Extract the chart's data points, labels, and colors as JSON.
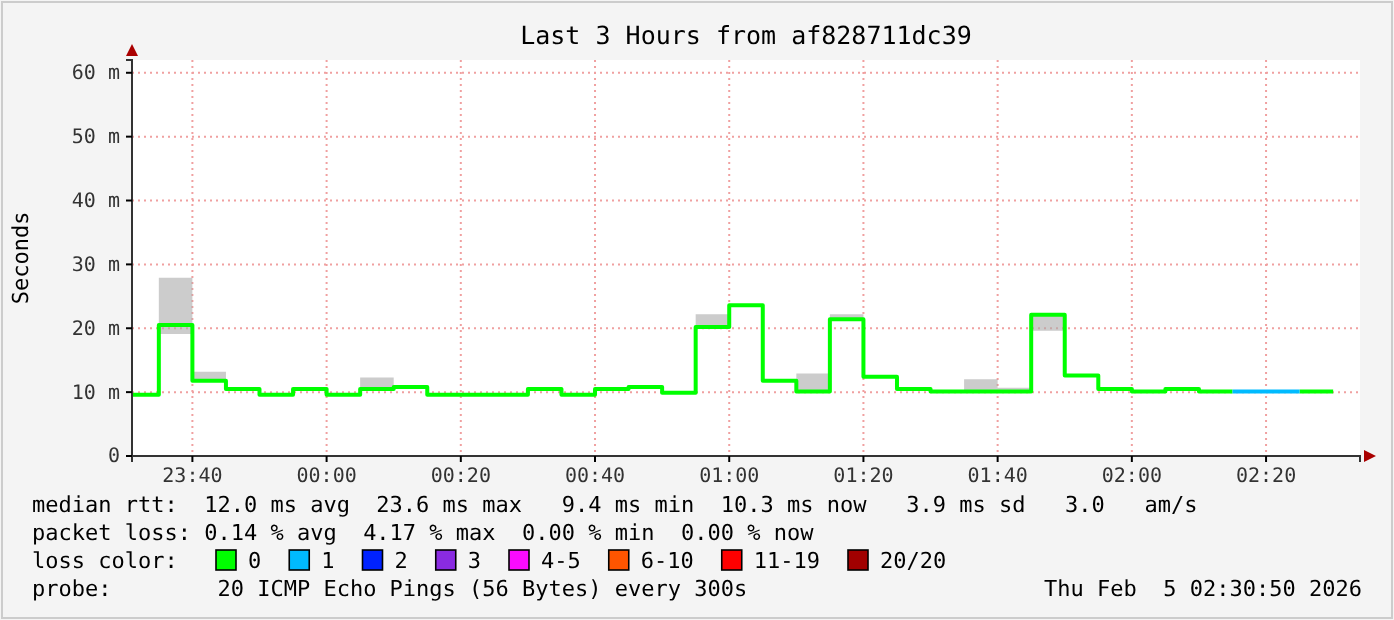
{
  "chart_data": {
    "type": "step",
    "title": "Last 3 Hours from af828711dc39",
    "ylabel": "Seconds",
    "x": [
      "2026-02-04T23:35",
      "2026-02-04T23:40",
      "2026-02-04T23:45",
      "2026-02-04T23:50",
      "2026-02-04T23:55",
      "2026-02-05T00:00",
      "2026-02-05T00:05",
      "2026-02-05T00:10",
      "2026-02-05T00:15",
      "2026-02-05T00:20",
      "2026-02-05T00:25",
      "2026-02-05T00:30",
      "2026-02-05T00:35",
      "2026-02-05T00:40",
      "2026-02-05T00:45",
      "2026-02-05T00:50",
      "2026-02-05T00:55",
      "2026-02-05T01:00",
      "2026-02-05T01:05",
      "2026-02-05T01:10",
      "2026-02-05T01:15",
      "2026-02-05T01:20",
      "2026-02-05T01:25",
      "2026-02-05T01:30",
      "2026-02-05T01:35",
      "2026-02-05T01:40",
      "2026-02-05T01:45",
      "2026-02-05T01:50",
      "2026-02-05T01:55",
      "2026-02-05T02:00",
      "2026-02-05T02:05",
      "2026-02-05T02:10",
      "2026-02-05T02:15",
      "2026-02-05T02:20",
      "2026-02-05T02:25",
      "2026-02-05T02:30"
    ],
    "xlim": [
      "2026-02-04T23:31",
      "2026-02-05T02:34"
    ],
    "xticks": [
      {
        "value": "2026-02-04T23:40",
        "label": "23:40"
      },
      {
        "value": "2026-02-05T00:00",
        "label": "00:00"
      },
      {
        "value": "2026-02-05T00:20",
        "label": "00:20"
      },
      {
        "value": "2026-02-05T00:40",
        "label": "00:40"
      },
      {
        "value": "2026-02-05T01:00",
        "label": "01:00"
      },
      {
        "value": "2026-02-05T01:20",
        "label": "01:20"
      },
      {
        "value": "2026-02-05T01:40",
        "label": "01:40"
      },
      {
        "value": "2026-02-05T02:00",
        "label": "02:00"
      },
      {
        "value": "2026-02-05T02:20",
        "label": "02:20"
      }
    ],
    "ylim": [
      0,
      62
    ],
    "yticks": [
      0,
      {
        "value": 10,
        "label": "10 m"
      },
      {
        "value": 20,
        "label": "20 m"
      },
      {
        "value": 30,
        "label": "30 m"
      },
      {
        "value": 40,
        "label": "40 m"
      },
      {
        "value": 50,
        "label": "50 m"
      },
      {
        "value": 60,
        "label": "60 m"
      }
    ],
    "grid": true,
    "legend": "bottom",
    "legend_title": "loss color:",
    "series": [
      {
        "name": "0",
        "color": "#00ff00",
        "values": [
          9.6,
          20.5,
          11.8,
          10.5,
          9.6,
          10.5,
          9.6,
          10.5,
          10.8,
          9.6,
          9.6,
          9.6,
          10.5,
          9.6,
          10.5,
          10.8,
          9.9,
          20.2,
          23.6,
          11.8,
          10.1,
          21.4,
          12.4,
          10.5,
          10.1,
          10.1,
          10.1,
          22.1,
          12.6,
          10.5,
          10.1,
          10.5,
          10.1,
          null,
          10.1,
          10.1
        ],
        "lower": [
          9.6,
          19.1,
          11.8,
          null,
          null,
          null,
          9.6,
          10.5,
          null,
          null,
          null,
          null,
          null,
          null,
          null,
          null,
          9.9,
          20.2,
          null,
          11.8,
          10.1,
          21.4,
          null,
          null,
          10.1,
          10.1,
          10.1,
          19.6,
          null,
          null,
          null,
          null,
          null,
          null,
          null,
          null
        ],
        "upper": [
          9.6,
          27.9,
          13.2,
          null,
          null,
          null,
          9.6,
          12.3,
          null,
          null,
          null,
          null,
          null,
          null,
          null,
          null,
          9.9,
          22.2,
          null,
          11.8,
          12.9,
          22.2,
          null,
          null,
          10.1,
          12.0,
          10.7,
          22.1,
          null,
          null,
          null,
          null,
          null,
          null,
          null,
          null
        ]
      },
      {
        "name": "1",
        "color": "#00bbff",
        "values": [
          null,
          null,
          null,
          null,
          null,
          null,
          null,
          null,
          null,
          null,
          null,
          null,
          null,
          null,
          null,
          null,
          null,
          null,
          null,
          null,
          null,
          null,
          null,
          null,
          null,
          null,
          null,
          null,
          null,
          null,
          null,
          null,
          10.1,
          10.1,
          10.1,
          null
        ]
      },
      {
        "name": "2",
        "color": "#0022ff",
        "values": [
          null,
          null,
          null,
          null,
          null,
          null,
          null,
          null,
          null,
          null,
          null,
          null,
          null,
          null,
          null,
          null,
          null,
          null,
          null,
          null,
          null,
          null,
          null,
          null,
          null,
          null,
          null,
          null,
          null,
          null,
          null,
          null,
          null,
          null,
          null,
          null
        ]
      },
      {
        "name": "3",
        "color": "#8a2be2",
        "values": [
          null,
          null,
          null,
          null,
          null,
          null,
          null,
          null,
          null,
          null,
          null,
          null,
          null,
          null,
          null,
          null,
          null,
          null,
          null,
          null,
          null,
          null,
          null,
          null,
          null,
          null,
          null,
          null,
          null,
          null,
          null,
          null,
          null,
          null,
          null,
          null
        ]
      },
      {
        "name": "4-5",
        "color": "#fa0bff",
        "values": [
          null,
          null,
          null,
          null,
          null,
          null,
          null,
          null,
          null,
          null,
          null,
          null,
          null,
          null,
          null,
          null,
          null,
          null,
          null,
          null,
          null,
          null,
          null,
          null,
          null,
          null,
          null,
          null,
          null,
          null,
          null,
          null,
          null,
          null,
          null,
          null
        ]
      },
      {
        "name": "6-10",
        "color": "#ff5500",
        "values": [
          null,
          null,
          null,
          null,
          null,
          null,
          null,
          null,
          null,
          null,
          null,
          null,
          null,
          null,
          null,
          null,
          null,
          null,
          null,
          null,
          null,
          null,
          null,
          null,
          null,
          null,
          null,
          null,
          null,
          null,
          null,
          null,
          null,
          null,
          null,
          null
        ]
      },
      {
        "name": "11-19",
        "color": "#ff0000",
        "values": [
          null,
          null,
          null,
          null,
          null,
          null,
          null,
          null,
          null,
          null,
          null,
          null,
          null,
          null,
          null,
          null,
          null,
          null,
          null,
          null,
          null,
          null,
          null,
          null,
          null,
          null,
          null,
          null,
          null,
          null,
          null,
          null,
          null,
          null,
          null,
          null
        ]
      },
      {
        "name": "20/20",
        "color": "#a10000",
        "values": [
          null,
          null,
          null,
          null,
          null,
          null,
          null,
          null,
          null,
          null,
          null,
          null,
          null,
          null,
          null,
          null,
          null,
          null,
          null,
          null,
          null,
          null,
          null,
          null,
          null,
          null,
          null,
          null,
          null,
          null,
          null,
          null,
          null,
          null,
          null,
          null
        ]
      }
    ],
    "annotations": [
      "median rtt:  12.0 ms avg  23.6 ms max   9.4 ms min  10.3 ms now   3.9 ms sd   3.0   am/s",
      "packet loss: 0.14 % avg  4.17 % max  0.00 % min  0.00 % now",
      "probe:        20 ICMP Echo Pings (56 Bytes) every 300s",
      "Thu Feb  5 02:30:50 2026"
    ]
  }
}
